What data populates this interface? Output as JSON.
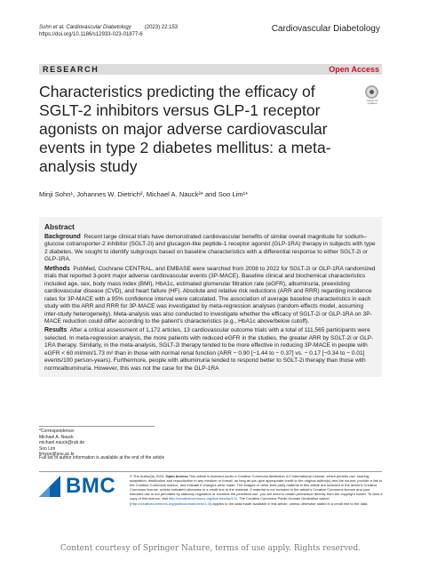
{
  "header": {
    "citation_authors": "Sohn et al.",
    "citation_journal": "Cardiovascular Diabetology",
    "citation_year_vol": "(2023) 22:153",
    "doi": "https://doi.org/10.1186/s12933-023-01877-6",
    "journal_name": "Cardiovascular Diabetology"
  },
  "bar": {
    "section": "RESEARCH",
    "access": "Open Access"
  },
  "crossmark": {
    "label": "Check for updates"
  },
  "title": "Characteristics predicting the efficacy of SGLT-2 inhibitors versus GLP-1 receptor agonists on major adverse cardiovascular events in type 2 diabetes mellitus: a meta-analysis study",
  "authors": "Minji Sohn¹, Johannes W. Dietrich², Michael A. Nauck²* and Soo Lim¹*",
  "abstract": {
    "heading": "Abstract",
    "background_label": "Background",
    "background_text": "Recent large clinical trials have demonstrated cardiovascular benefits of similar overall magnitude for sodium–glucose cotransporter-2 inhibitor (SGLT-2i) and glucagon-like peptide-1 receptor agonist (GLP-1RA) therapy in subjects with type 2 diabetes. We sought to identify subgroups based on baseline characteristics with a differential response to either SGLT-2i or GLP-1RA.",
    "methods_label": "Methods",
    "methods_text": "PubMed, Cochrane CENTRAL, and EMBASE were searched from 2008 to 2022 for SGLT-2i or GLP-1RA randomized trials that reported 3-point major adverse cardiovascular events (3P-MACE). Baseline clinical and biochemical characteristics included age, sex, body mass index (BMI), HbA1c, estimated glomerular filtration rate (eGFR), albuminuria, preexisting cardiovascular disease (CVD), and heart failure (HF). Absolute and relative risk reductions (ARR and RRR) regarding incidence rates for 3P-MACE with a 95% confidence interval were calculated. The association of average baseline characteristics in each study with the ARR and RRR for 3P-MACE was investigated by meta-regression analyses (random-effects model, assuming inter-study heterogeneity). Meta-analysis was also conducted to investigate whether the efficacy of SGLT-2i or GLP-1RA on 3P-MACE reduction could differ according to the patient’s characteristics (e.g., HbA1c above/below cutoff).",
    "results_label": "Results",
    "results_text": "After a critical assessment of 1,172 articles, 13 cardiovascular outcome trials with a total of 111,565 participants were selected. In meta-regression analysis, the more patients with reduced eGFR in the studies, the greater ARR by SGLT-2i or GLP-1RA therapy. Similarly, in the meta-analysis, SGLT-2i therapy tended to be more effective in reducing 3P-MACE in people with eGFR < 60 ml/min/1.73 m² than in those with normal renal function (ARR − 0.90 [−1.44 to − 0.37] vs. − 0.17 [−0.34 to − 0.01] events/100 person-years). Furthermore, people with albuminuria tended to respond better to SGLT-2i therapy than those with normoalbuminuria. However, this was not the case for the GLP-1RA"
  },
  "correspondence": {
    "label": "*Correspondence:",
    "name1": "Michael A. Nauck",
    "email1": "michael.nauck@rub.de",
    "name2": "Soo Lim",
    "email2": "limsoo@snu.ac.kr"
  },
  "full_info": "Full list of author information is available at the end of the article",
  "publisher": {
    "logo_text": "BMC"
  },
  "license": {
    "text_a": "© The Author(s) 2023.",
    "open_access_label": "Open Access",
    "text_b": "This article is licensed under a Creative Commons Attribution 4.0 International License, which permits use, sharing, adaptation, distribution and reproduction in any medium or format, as long as you give appropriate credit to the original author(s) and the source, provide a link to the Creative Commons licence, and indicate if changes were made. The images or other third party material in this article are included in the article’s Creative Commons licence, unless indicated otherwise in a credit line to the material. If material is not included in the article’s Creative Commons licence and your intended use is not permitted by statutory regulation or exceeds the permitted use, you will need to obtain permission directly from the copyright holder. To view a copy of this licence, visit",
    "link1": "http://creativecommons.org/licenses/by/4.0/",
    "text_c": ". The Creative Commons Public Domain Dedication waiver (",
    "link2": "http://creativecommons.org/publicdomain/zero/1.0/",
    "text_d": ") applies to the data made available in this article, unless otherwise stated in a credit line to the data."
  },
  "watermark": "Content courtesy of Springer Nature, terms of use apply. Rights reserved."
}
